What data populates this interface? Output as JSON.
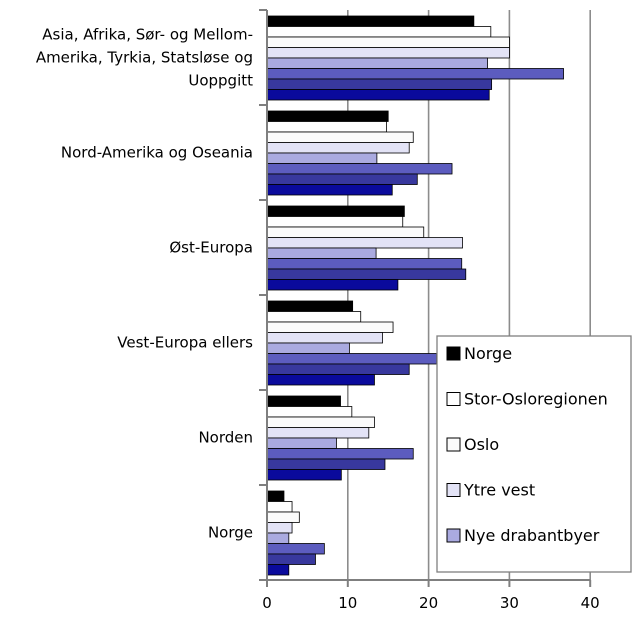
{
  "chart_data": {
    "type": "bar",
    "orientation": "horizontal",
    "title": "",
    "xlabel": "",
    "ylabel": "",
    "xlim": [
      0,
      40
    ],
    "x_ticks": [
      "0",
      "10",
      "20",
      "30",
      "40"
    ],
    "grid": "vertical",
    "categories": [
      [
        "Asia, Afrika, Sør- og Mellom-",
        "Amerika, Tyrkia, Statsløse og",
        "Uoppgitt"
      ],
      [
        "Nord-Amerika og Oseania"
      ],
      [
        "Øst-Europa"
      ],
      [
        "Vest-Europa ellers"
      ],
      [
        "Norden"
      ],
      [
        "Norge"
      ]
    ],
    "legend_position": "bottom-right",
    "series": [
      {
        "name": "Norge",
        "color": "#000000",
        "values": [
          25.6,
          15.0,
          17.0,
          10.6,
          9.1,
          2.1
        ]
      },
      {
        "name": "Stor-Osloregionen",
        "color": "#ffffff",
        "values": [
          27.7,
          14.8,
          16.8,
          11.6,
          10.5,
          3.1
        ]
      },
      {
        "name": "Oslo",
        "color": "#fbfbfb",
        "values": [
          30.0,
          18.1,
          19.4,
          15.6,
          13.3,
          4.0
        ]
      },
      {
        "name": "Ytre vest",
        "color": "#e3e3f6",
        "values": [
          30.0,
          17.6,
          24.2,
          14.3,
          12.6,
          3.1
        ]
      },
      {
        "name": "Nye drabantbyer",
        "color": "#aaaae0",
        "values": [
          27.3,
          13.6,
          13.5,
          10.2,
          8.6,
          2.7
        ]
      },
      {
        "color": "#5c5cbf",
        "values": [
          36.7,
          22.9,
          24.1,
          21.0,
          18.1,
          7.1
        ]
      },
      {
        "color": "#38389e",
        "values": [
          27.8,
          18.6,
          24.6,
          17.6,
          14.6,
          6.0
        ]
      },
      {
        "color": "#0a0a9c",
        "values": [
          27.5,
          15.5,
          16.2,
          13.3,
          9.2,
          2.7
        ]
      }
    ]
  }
}
